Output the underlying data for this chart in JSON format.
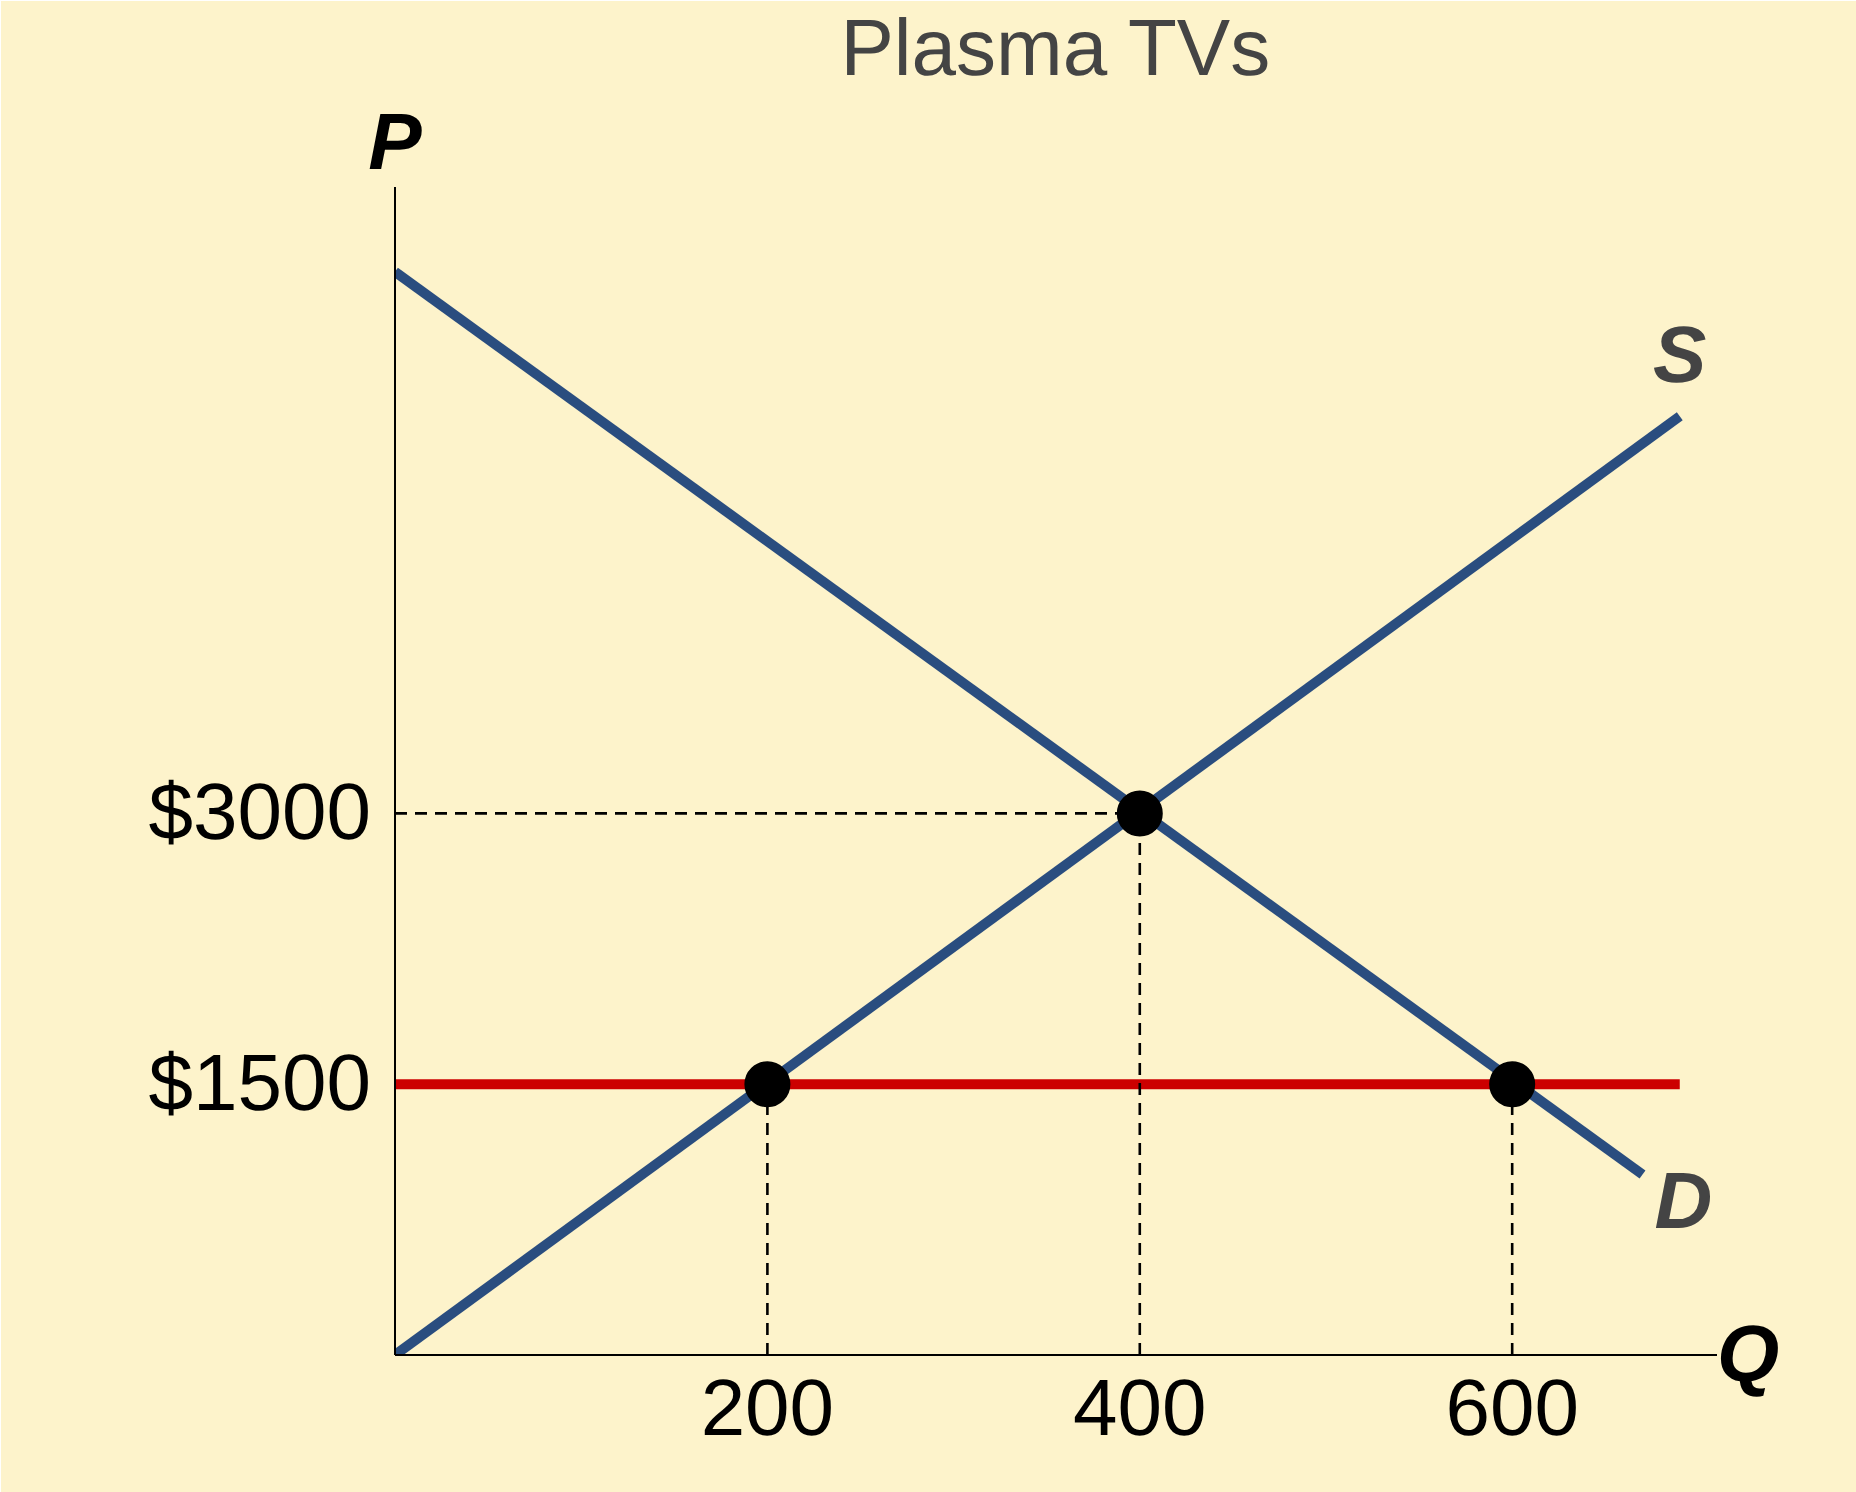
{
  "chart_data": {
    "type": "line",
    "title": "Plasma TVs",
    "xlabel": "Q",
    "ylabel": "P",
    "xlim": [
      0,
      710
    ],
    "ylim": [
      0,
      6470
    ],
    "xticks": [
      200,
      400,
      600
    ],
    "yticks": [
      {
        "value": 1500,
        "label": "$1500"
      },
      {
        "value": 3000,
        "label": "$3000"
      }
    ],
    "grid": false,
    "marker": "none",
    "line_style": "solid",
    "series": [
      {
        "name": "D",
        "color": "#2a4d7f",
        "x": [
          0,
          670
        ],
        "values": [
          6000,
          1000
        ]
      },
      {
        "name": "S",
        "color": "#2a4d7f",
        "x": [
          0,
          690
        ],
        "values": [
          0,
          5200
        ]
      },
      {
        "color": "#cc0000",
        "x": [
          0,
          690
        ],
        "values": [
          1500,
          1500
        ]
      },
      {
        "color": "#000000",
        "line_style": "dashed",
        "x": [
          0,
          400
        ],
        "values": [
          3000,
          3000
        ]
      },
      {
        "color": "#000000",
        "line_style": "dashed",
        "x": [
          400,
          400
        ],
        "values": [
          0,
          3000
        ]
      },
      {
        "color": "#000000",
        "line_style": "dashed",
        "x": [
          200,
          200
        ],
        "values": [
          0,
          1500
        ]
      },
      {
        "color": "#000000",
        "line_style": "dashed",
        "x": [
          600,
          600
        ],
        "values": [
          0,
          1500
        ]
      },
      {
        "type": "scatter",
        "marker": "circle",
        "color": "#000000",
        "x": [
          200,
          400,
          600
        ],
        "values": [
          1500,
          3000,
          1500
        ]
      }
    ]
  }
}
